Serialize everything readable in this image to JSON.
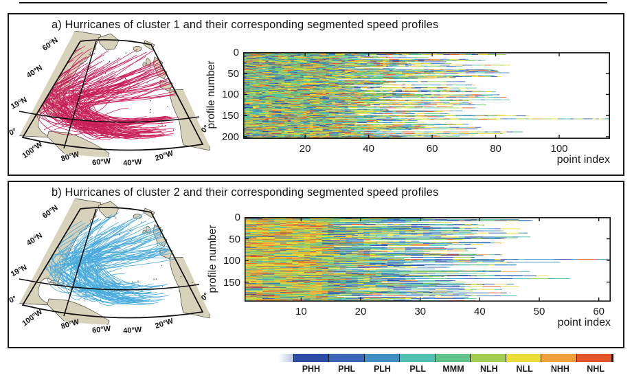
{
  "figure": {
    "panels": [
      {
        "id": "a",
        "title": "a) Hurricanes of cluster 1 and their corresponding segmented speed profiles",
        "map": {
          "track_color": "#c9205a",
          "land_color": "#d9d2bb",
          "coast_color": "#4a463c",
          "lat_labels": [
            "60°N",
            "40°N",
            "19°N",
            "0°"
          ],
          "lon_labels": [
            "100°W",
            "80°W",
            "60°W",
            "40°W",
            "20°W",
            "0°"
          ]
        },
        "heatmap": {
          "ylabel": "profile number",
          "xlabel": "point index",
          "y_ticks": [
            0,
            50,
            100,
            150,
            200
          ],
          "x_ticks": [
            20,
            40,
            60,
            80,
            100
          ],
          "n_profiles": 205,
          "x_min": 0.5,
          "x_max": 116,
          "long_rows": [
            [
              30,
              84
            ],
            [
              42,
              80
            ],
            [
              118,
              72
            ],
            [
              150,
              90
            ],
            [
              157,
              116
            ],
            [
              188,
              88
            ]
          ],
          "color_weight_zones": [
            {
              "x_upto": 64,
              "w": [
                5,
                6,
                8,
                13,
                13,
                12,
                16,
                8,
                6
              ]
            },
            {
              "x_upto": 999,
              "w": [
                7,
                8,
                11,
                14,
                11,
                10,
                13,
                5,
                4
              ]
            }
          ]
        }
      },
      {
        "id": "b",
        "title": "b) Hurricanes of cluster 2 and their corresponding segmented speed profiles",
        "map": {
          "track_color": "#4aabdd",
          "land_color": "#d9d2bb",
          "coast_color": "#4a463c",
          "lat_labels": [
            "60°N",
            "40°N",
            "19°N",
            "0°"
          ],
          "lon_labels": [
            "100°W",
            "80°W",
            "60°W",
            "40°W",
            "20°W",
            "0°"
          ]
        },
        "heatmap": {
          "ylabel": "profile number",
          "xlabel": "point index",
          "y_ticks": [
            0,
            50,
            100,
            150
          ],
          "x_ticks": [
            10,
            20,
            30,
            40,
            50,
            60
          ],
          "n_profiles": 195,
          "x_min": 0.5,
          "x_max": 62,
          "long_rows": [
            [
              8,
              48
            ],
            [
              45,
              48
            ],
            [
              97,
              62
            ],
            [
              103,
              53
            ],
            [
              135,
              51
            ],
            [
              160,
              46
            ],
            [
              193,
              45
            ]
          ],
          "color_weight_zones": [
            {
              "x_upto": 12,
              "w": [
                2,
                2,
                3,
                7,
                11,
                13,
                24,
                18,
                10
              ]
            },
            {
              "x_upto": 22,
              "w": [
                5,
                7,
                11,
                14,
                12,
                10,
                13,
                6,
                4
              ]
            },
            {
              "x_upto": 999,
              "w": [
                9,
                13,
                17,
                16,
                9,
                6,
                9,
                4,
                3
              ]
            }
          ]
        }
      }
    ],
    "colorbar": {
      "labels": [
        "PHH",
        "PHL",
        "PLH",
        "PLL",
        "MMM",
        "NLH",
        "NLL",
        "NHH",
        "NHL"
      ],
      "colors": [
        "#2c4da6",
        "#3a64b5",
        "#3f8fc4",
        "#4fc0b2",
        "#5ec48c",
        "#a2cf52",
        "#ecde38",
        "#f0a03a",
        "#e2542a"
      ],
      "intro_gradient": [
        "#ffffff",
        "#b9c9e6"
      ],
      "end_cap_color": "#2e1407"
    }
  },
  "chart_data": [
    {
      "type": "heatmap",
      "panel": "a",
      "title": "a) Hurricanes of cluster 1 and their corresponding segmented speed profiles",
      "xlabel": "point index",
      "ylabel": "profile number",
      "x_tick_labels": [
        20,
        40,
        60,
        80,
        100
      ],
      "y_tick_labels": [
        0,
        50,
        100,
        150,
        200
      ],
      "x_range": [
        1,
        116
      ],
      "y_range": [
        0,
        205
      ],
      "n_profiles": 205,
      "cell_values": "categorical speed-segment class per point, one of PHH/PHL/PLH/PLL/MMM/NLH/NLL/NHH/NHL (shared bottom colorbar)",
      "profile_length_summary": "each row colored from point 1 up to its profile length; most profiles end between ~25 and ~75 points, a few exceed 80, longest ≈116 points at profile ≈157",
      "grid": false,
      "legend_position": "shared colorbar at bottom"
    },
    {
      "type": "heatmap",
      "panel": "b",
      "title": "b) Hurricanes of cluster 2 and their corresponding segmented speed profiles",
      "xlabel": "point index",
      "ylabel": "profile number",
      "x_tick_labels": [
        10,
        20,
        30,
        40,
        50,
        60
      ],
      "y_tick_labels": [
        0,
        50,
        100,
        150
      ],
      "x_range": [
        1,
        62
      ],
      "y_range": [
        0,
        195
      ],
      "n_profiles": 195,
      "cell_values": "categorical speed-segment class per point; left third dominated by NLL/NHH/NLH (yellow-orange), beyond ~point 22 mostly PLH/PHL/PLL (blue-cyan)",
      "profile_length_summary": "most profiles end between ~18 and ~45 points, longest ≈62 points at profile ≈97",
      "grid": false,
      "legend_position": "shared colorbar at bottom"
    },
    {
      "type": "map",
      "panel": "a",
      "description": "North Atlantic conic-projection map with hurricane tracks of cluster 1 (crimson), recurving from the tropical Atlantic/Caribbean toward the northeast",
      "track_color": "#c9205a",
      "lat_labels": [
        "60°N",
        "40°N",
        "19°N",
        "0°"
      ],
      "lon_labels": [
        "100°W",
        "80°W",
        "60°W",
        "40°W",
        "20°W",
        "0°"
      ]
    },
    {
      "type": "map",
      "panel": "b",
      "description": "North Atlantic conic-projection map with hurricane tracks of cluster 2 (light blue), recurving from the tropical Atlantic toward the north and northeast",
      "track_color": "#4aabdd",
      "lat_labels": [
        "60°N",
        "40°N",
        "19°N",
        "0°"
      ],
      "lon_labels": [
        "100°W",
        "80°W",
        "60°W",
        "40°W",
        "20°W",
        "0°"
      ]
    },
    {
      "type": "colorbar",
      "categories": [
        "PHH",
        "PHL",
        "PLH",
        "PLL",
        "MMM",
        "NLH",
        "NLL",
        "NHH",
        "NHL"
      ],
      "colors": [
        "#2c4da6",
        "#3a64b5",
        "#3f8fc4",
        "#4fc0b2",
        "#5ec48c",
        "#a2cf52",
        "#ecde38",
        "#f0a03a",
        "#e2542a"
      ],
      "orientation": "horizontal"
    }
  ]
}
